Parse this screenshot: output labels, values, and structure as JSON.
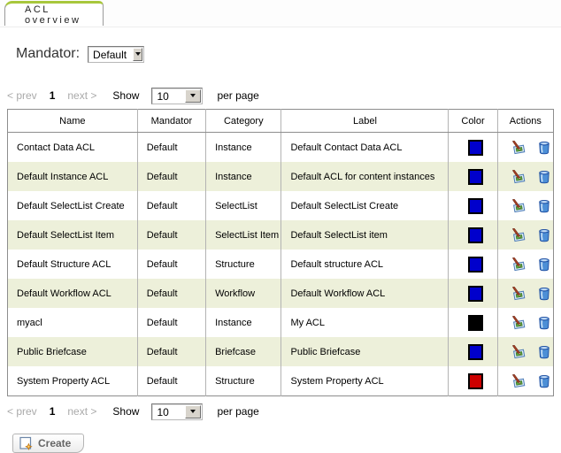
{
  "tab": {
    "label": "ACL overview"
  },
  "mandator": {
    "label": "Mandator:",
    "value": "Default"
  },
  "pagination": {
    "prev": "< prev",
    "page": "1",
    "next": "next >",
    "show_label": "Show",
    "page_size": "10",
    "per_page_label": "per page"
  },
  "table": {
    "headers": [
      "Name",
      "Mandator",
      "Category",
      "Label",
      "Color",
      "Actions"
    ],
    "rows": [
      {
        "name": "Contact Data ACL",
        "mandator": "Default",
        "category": "Instance",
        "label": "Default Contact Data ACL",
        "color": "#0000cc"
      },
      {
        "name": "Default Instance ACL",
        "mandator": "Default",
        "category": "Instance",
        "label": "Default ACL for content instances",
        "color": "#0000cc"
      },
      {
        "name": "Default SelectList Create",
        "mandator": "Default",
        "category": "SelectList",
        "label": "Default SelectList Create",
        "color": "#0000cc"
      },
      {
        "name": "Default SelectList Item",
        "mandator": "Default",
        "category": "SelectList Item",
        "label": "Default SelectList item",
        "color": "#0000cc"
      },
      {
        "name": "Default Structure ACL",
        "mandator": "Default",
        "category": "Structure",
        "label": "Default structure ACL",
        "color": "#0000cc"
      },
      {
        "name": "Default Workflow ACL",
        "mandator": "Default",
        "category": "Workflow",
        "label": "Default Workflow ACL",
        "color": "#0000cc"
      },
      {
        "name": "myacl",
        "mandator": "Default",
        "category": "Instance",
        "label": "My ACL",
        "color": "#000000"
      },
      {
        "name": "Public Briefcase",
        "mandator": "Default",
        "category": "Briefcase",
        "label": "Public Briefcase",
        "color": "#0000cc"
      },
      {
        "name": "System Property ACL",
        "mandator": "Default",
        "category": "Structure",
        "label": "System Property ACL",
        "color": "#cc0000"
      }
    ],
    "action_icons": {
      "edit": "edit",
      "delete": "delete"
    }
  },
  "create_button": {
    "label": "Create"
  },
  "colors": {
    "tab_accent_green": "#a8c73c",
    "row_alt_background": "#edf0da",
    "table_border": "#8d8d8d",
    "swatch_blue": "#0000cc",
    "swatch_black": "#000000",
    "swatch_red": "#cc0000"
  }
}
